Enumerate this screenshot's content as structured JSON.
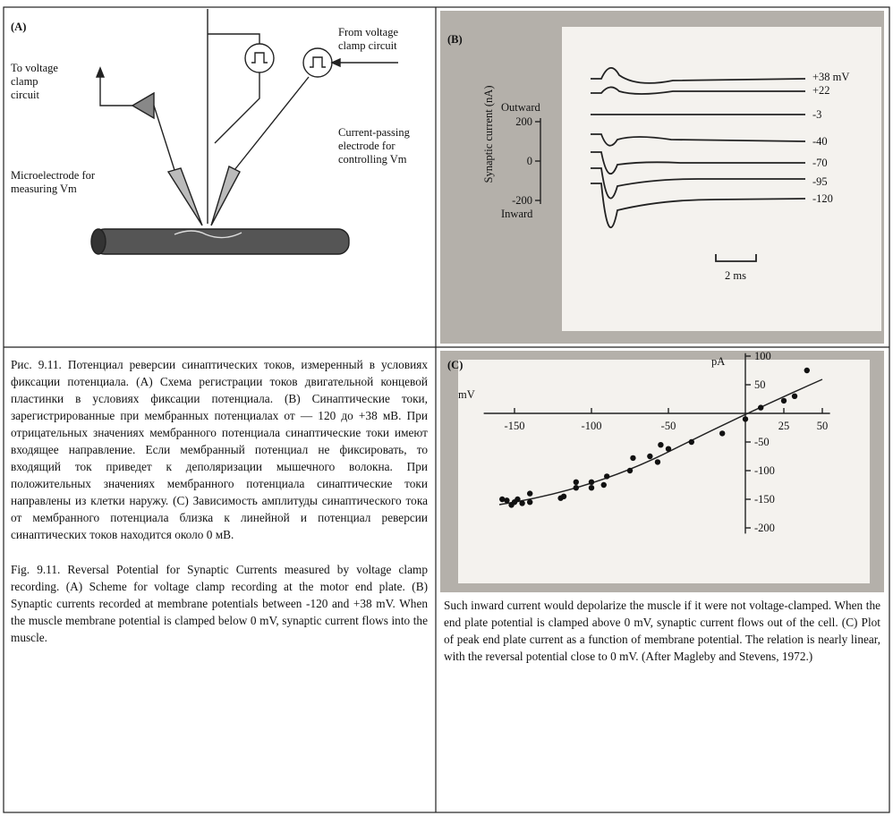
{
  "figure_a": {
    "panel": "(A)",
    "to_label": [
      "To voltage",
      "clamp",
      "circuit"
    ],
    "from_label": [
      "From voltage",
      "clamp circuit"
    ],
    "micro_label": [
      "Microelectrode for",
      "measuring Vm"
    ],
    "current_label": [
      "Current-passing",
      "electrode for",
      "controlling Vm"
    ]
  },
  "figure_b": {
    "panel": "(B)",
    "ylabel": "Synaptic current (nA)",
    "outward": "Outward",
    "inward": "Inward",
    "yticks": [
      200,
      0,
      -200
    ],
    "ylim": [
      -200,
      200
    ],
    "trace_labels": [
      "+38 mV",
      "+22",
      "-3",
      "-40",
      "-70",
      "-95",
      "-120"
    ],
    "scale_label": "2 ms"
  },
  "figure_c": {
    "type": "scatter",
    "panel": "(C)",
    "xlabel": "mV",
    "ylabel": "pA",
    "xlim": [
      -170,
      55
    ],
    "ylim": [
      -210,
      105
    ],
    "xticks": [
      -150,
      -100,
      -50,
      25,
      50
    ],
    "yticks": [
      100,
      50,
      -50,
      -100,
      -150,
      -200
    ],
    "x": [
      -158,
      -155,
      -152,
      -150,
      -148,
      -145,
      -140,
      -140,
      -120,
      -118,
      -110,
      -110,
      -100,
      -100,
      -92,
      -90,
      -75,
      -73,
      -62,
      -57,
      -55,
      -50,
      -35,
      -15,
      0,
      10,
      25,
      32,
      40
    ],
    "y": [
      -150,
      -152,
      -160,
      -155,
      -150,
      -157,
      -140,
      -155,
      -148,
      -145,
      -130,
      -120,
      -130,
      -120,
      -125,
      -110,
      -100,
      -78,
      -75,
      -85,
      -55,
      -62,
      -50,
      -35,
      -10,
      10,
      22,
      30,
      75
    ]
  },
  "caption_ru": "Рис. 9.11. Потенциал реверсии синаптических токов, измеренный в условиях фиксации потенциала. (A) Схема регистрации токов двигательной концевой пластинки в условиях фиксации потенциала. (B) Синаптические токи, зарегистрированные при мембранных потенциалах от — 120 до +38 мВ. При отрицательных значениях мембранного потенциала синаптические токи имеют входящее направление. Если мембранный потенциал не фиксировать, то входящий ток приведет к деполяризации мышечного волокна. При положительных значениях мембранного потенциала синаптические токи направлены из клетки наружу. (C) Зависимость амплитуды синаптического тока от мембранного потенциала близка к линейной и потенциал реверсии синаптических токов находится около 0 мВ.",
  "caption_en": "Fig. 9.11. Reversal Potential for Synaptic Currents measured by voltage clamp recording. (A) Scheme for voltage clamp recording at the motor end plate. (B) Synaptic currents recorded at membrane potentials between -120 and +38 mV. When the muscle membrane potential is clamped below 0 mV, synaptic current flows into the muscle.",
  "caption_en_cont": "Such inward current would depolarize the muscle if it were not voltage-clamped. When the end plate potential is clamped above 0 mV, synaptic current flows out of the cell. (C) Plot of peak end plate current as a function of membrane potential. The relation is nearly linear, with the reversal potential close to 0 mV. (After Magleby and Stevens, 1972.)"
}
